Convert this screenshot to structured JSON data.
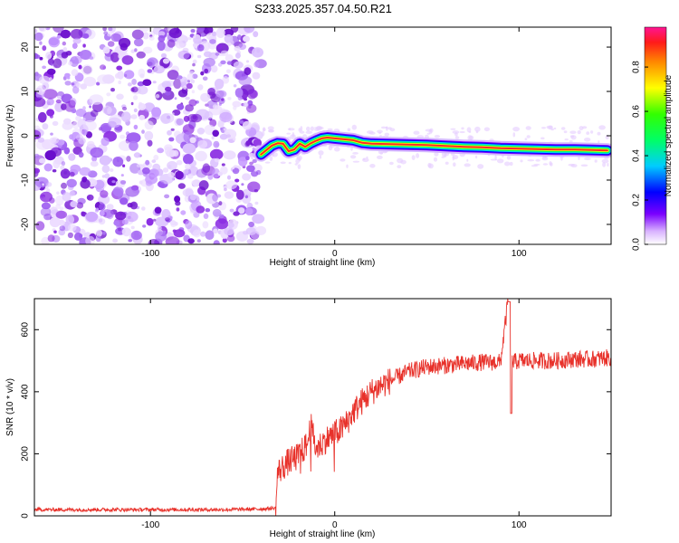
{
  "figure_title": "S233.2025.357.04.50.R21",
  "colors": {
    "trace": "#e8312a",
    "frame": "#000000",
    "speckle": "#8a2be2",
    "band_core": "#ff2a2a"
  },
  "chart_data": [
    {
      "id": "spectrogram",
      "type": "heatmap",
      "title": "S233.2025.357.04.50.R21",
      "xlabel": "Height of straight line (km)",
      "ylabel": "Frequency (Hz)",
      "xlim": [
        -163,
        150
      ],
      "ylim": [
        -24.5,
        24.5
      ],
      "xticks": [
        -100,
        0,
        100
      ],
      "yticks": [
        -20,
        -10,
        0,
        10,
        20
      ],
      "noise_region_x": [
        -163,
        -40
      ],
      "doppler_track": {
        "x": [
          -40,
          -37,
          -34,
          -31,
          -28,
          -25,
          -22,
          -19,
          -16,
          -13,
          -10,
          -7,
          -4,
          0,
          5,
          10,
          15,
          20,
          30,
          40,
          50,
          60,
          70,
          80,
          90,
          100,
          110,
          120,
          130,
          140,
          148
        ],
        "freq": [
          -4.2,
          -3.2,
          -2.2,
          -1.7,
          -1.8,
          -3.5,
          -3.1,
          -1.8,
          -2.5,
          -1.7,
          -1.1,
          -0.6,
          -0.4,
          -0.6,
          -0.8,
          -1.0,
          -1.6,
          -1.8,
          -1.9,
          -2.0,
          -2.1,
          -2.3,
          -2.5,
          -2.6,
          -2.8,
          -2.9,
          -3.0,
          -3.1,
          -3.1,
          -3.2,
          -3.3
        ]
      },
      "colorbar": {
        "label": "Normalized spectral amplitude",
        "range": [
          0.0,
          0.98
        ],
        "ticks": [
          "0.0",
          "0.2",
          "0.4",
          "0.6",
          "0.8"
        ]
      }
    },
    {
      "id": "snr",
      "type": "line",
      "xlabel": "Height of straight line (km)",
      "ylabel": "SNR (10 * v/v)",
      "xlim": [
        -163,
        150
      ],
      "ylim": [
        0,
        700
      ],
      "xticks": [
        -100,
        0,
        100
      ],
      "yticks": [
        0,
        200,
        400,
        600
      ],
      "series": [
        {
          "name": "SNR",
          "x": [
            -163,
            -140,
            -120,
            -100,
            -80,
            -60,
            -40,
            -32,
            -31,
            -25,
            -20,
            -15,
            -13,
            -10,
            -5,
            0,
            5,
            10,
            15,
            20,
            25,
            30,
            35,
            40,
            50,
            60,
            70,
            80,
            90,
            94,
            95,
            96,
            97,
            100,
            110,
            120,
            130,
            140,
            150
          ],
          "y": [
            20,
            20,
            20,
            20,
            20,
            20,
            22,
            25,
            140,
            175,
            190,
            230,
            290,
            215,
            245,
            265,
            285,
            335,
            370,
            400,
            420,
            435,
            450,
            465,
            480,
            485,
            490,
            495,
            495,
            690,
            330,
            520,
            495,
            500,
            500,
            500,
            505,
            505,
            510
          ]
        }
      ]
    }
  ]
}
